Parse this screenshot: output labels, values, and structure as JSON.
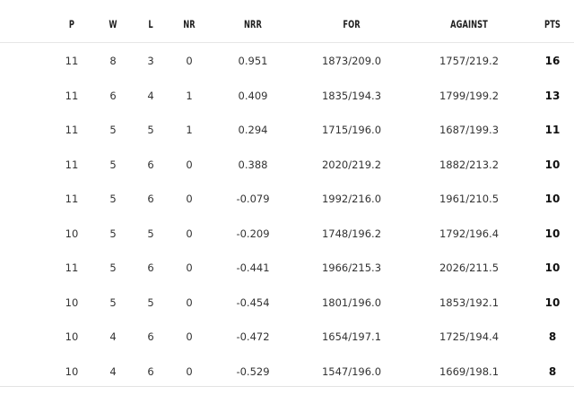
{
  "headers": {
    "p": "P",
    "w": "W",
    "l": "L",
    "nr": "NR",
    "nrr": "NRR",
    "for": "FOR",
    "against": "AGAINST",
    "pts": "PTS"
  },
  "rows": [
    {
      "p": "11",
      "w": "8",
      "l": "3",
      "nr": "0",
      "nrr": "0.951",
      "for": "1873/209.0",
      "against": "1757/219.2",
      "pts": "16"
    },
    {
      "p": "11",
      "w": "6",
      "l": "4",
      "nr": "1",
      "nrr": "0.409",
      "for": "1835/194.3",
      "against": "1799/199.2",
      "pts": "13"
    },
    {
      "p": "11",
      "w": "5",
      "l": "5",
      "nr": "1",
      "nrr": "0.294",
      "for": "1715/196.0",
      "against": "1687/199.3",
      "pts": "11"
    },
    {
      "p": "11",
      "w": "5",
      "l": "6",
      "nr": "0",
      "nrr": "0.388",
      "for": "2020/219.2",
      "against": "1882/213.2",
      "pts": "10"
    },
    {
      "p": "11",
      "w": "5",
      "l": "6",
      "nr": "0",
      "nrr": "-0.079",
      "for": "1992/216.0",
      "against": "1961/210.5",
      "pts": "10"
    },
    {
      "p": "10",
      "w": "5",
      "l": "5",
      "nr": "0",
      "nrr": "-0.209",
      "for": "1748/196.2",
      "against": "1792/196.4",
      "pts": "10"
    },
    {
      "p": "11",
      "w": "5",
      "l": "6",
      "nr": "0",
      "nrr": "-0.441",
      "for": "1966/215.3",
      "against": "2026/211.5",
      "pts": "10"
    },
    {
      "p": "10",
      "w": "5",
      "l": "5",
      "nr": "0",
      "nrr": "-0.454",
      "for": "1801/196.0",
      "against": "1853/192.1",
      "pts": "10"
    },
    {
      "p": "10",
      "w": "4",
      "l": "6",
      "nr": "0",
      "nrr": "-0.472",
      "for": "1654/197.1",
      "against": "1725/194.4",
      "pts": "8"
    },
    {
      "p": "10",
      "w": "4",
      "l": "6",
      "nr": "0",
      "nrr": "-0.529",
      "for": "1547/196.0",
      "against": "1669/198.1",
      "pts": "8"
    }
  ]
}
